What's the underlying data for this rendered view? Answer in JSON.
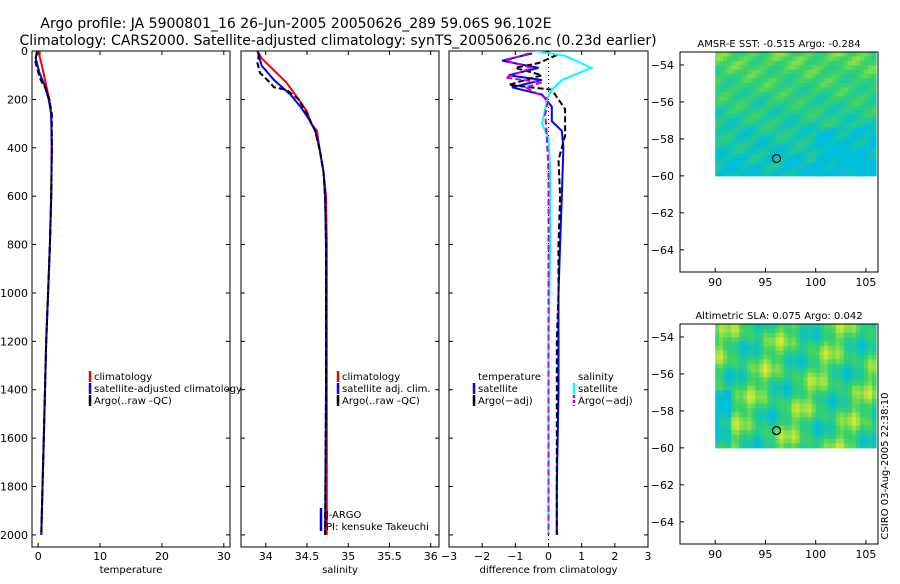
{
  "header": {
    "line1": "Argo profile: JA 5900801_16 26-Jun-2005 20050626_289 59.06S 96.102E",
    "line2": "Climatology: CARS2000. Satellite-adjusted climatology: synTS_20050626.nc (0.23d earlier)"
  },
  "stamp": "CSIRO 03-Aug-2005 22:38:10",
  "colors": {
    "red": "#ff0000",
    "blue": "#0000ff",
    "black": "#000000",
    "cyan": "#00ffff",
    "magenta": "#cc00cc"
  },
  "chart_data": [
    {
      "type": "line",
      "id": "temp",
      "xlabel": "temperature",
      "xlim": [
        -1,
        31
      ],
      "ylim": [
        2050,
        0
      ],
      "xticks": [
        0,
        10,
        20,
        30
      ],
      "yticks": [
        0,
        200,
        400,
        600,
        800,
        1000,
        1200,
        1400,
        1600,
        1800,
        2000
      ],
      "legend": [
        {
          "label": "climatology",
          "color": "red"
        },
        {
          "label": "satellite-adjusted climatology",
          "color": "blue"
        },
        {
          "label": "Argo(..raw -QC)",
          "color": "black"
        }
      ],
      "series": [
        {
          "name": "climatology",
          "color": "red",
          "dash": false,
          "points": [
            [
              0.3,
              0
            ],
            [
              0.2,
              20
            ],
            [
              0.6,
              60
            ],
            [
              1.2,
              130
            ],
            [
              1.8,
              200
            ],
            [
              2.1,
              260
            ],
            [
              2.2,
              400
            ],
            [
              2.1,
              600
            ],
            [
              1.9,
              800
            ],
            [
              1.6,
              1000
            ],
            [
              1.3,
              1200
            ],
            [
              1.1,
              1400
            ],
            [
              0.9,
              1600
            ],
            [
              0.7,
              1800
            ],
            [
              0.5,
              2000
            ]
          ]
        },
        {
          "name": "satellite-adjusted climatology",
          "color": "blue",
          "dash": false,
          "points": [
            [
              -0.2,
              0
            ],
            [
              -0.4,
              30
            ],
            [
              0.2,
              90
            ],
            [
              1.0,
              140
            ],
            [
              1.7,
              200
            ],
            [
              2.1,
              260
            ],
            [
              2.2,
              400
            ],
            [
              2.1,
              600
            ],
            [
              1.9,
              800
            ],
            [
              1.6,
              1000
            ],
            [
              1.3,
              1200
            ],
            [
              1.1,
              1400
            ],
            [
              0.9,
              1600
            ],
            [
              0.7,
              1800
            ],
            [
              0.5,
              2000
            ]
          ]
        },
        {
          "name": "Argo",
          "color": "black",
          "dash": true,
          "points": [
            [
              -0.2,
              5
            ],
            [
              -0.5,
              40
            ],
            [
              -0.1,
              80
            ],
            [
              0.4,
              120
            ],
            [
              1.1,
              150
            ],
            [
              1.8,
              200
            ],
            [
              2.2,
              260
            ],
            [
              2.2,
              400
            ],
            [
              2.1,
              600
            ],
            [
              1.9,
              800
            ],
            [
              1.6,
              1000
            ],
            [
              1.3,
              1200
            ],
            [
              1.1,
              1400
            ],
            [
              0.9,
              1600
            ],
            [
              0.7,
              1800
            ],
            [
              0.5,
              2000
            ]
          ]
        }
      ]
    },
    {
      "type": "line",
      "id": "sal",
      "xlabel": "salinity",
      "xlim": [
        33.7,
        36.1
      ],
      "ylim": [
        2050,
        0
      ],
      "xticks": [
        34,
        34.5,
        35,
        35.5,
        36
      ],
      "xticklabels": [
        "34",
        "34.5",
        "35",
        "35.5",
        "36"
      ],
      "legend": [
        {
          "label": "climatology",
          "color": "red"
        },
        {
          "label": "satellite adj. clim.",
          "color": "blue"
        },
        {
          "label": "Argo(..raw -QC)",
          "color": "black"
        }
      ],
      "note": [
        "J-ARGO",
        "PI: kensuke Takeuchi"
      ],
      "series": [
        {
          "name": "climatology",
          "color": "red",
          "dash": false,
          "points": [
            [
              33.9,
              0
            ],
            [
              33.95,
              30
            ],
            [
              34.1,
              80
            ],
            [
              34.25,
              130
            ],
            [
              34.4,
              200
            ],
            [
              34.5,
              250
            ],
            [
              34.55,
              300
            ],
            [
              34.62,
              330
            ],
            [
              34.65,
              400
            ],
            [
              34.7,
              500
            ],
            [
              34.73,
              600
            ],
            [
              34.74,
              800
            ],
            [
              34.74,
              1000
            ],
            [
              34.74,
              1400
            ],
            [
              34.74,
              2000
            ]
          ]
        },
        {
          "name": "satellite adj. clim.",
          "color": "blue",
          "dash": false,
          "points": [
            [
              33.9,
              0
            ],
            [
              33.95,
              60
            ],
            [
              34.1,
              120
            ],
            [
              34.3,
              180
            ],
            [
              34.42,
              230
            ],
            [
              34.52,
              280
            ],
            [
              34.6,
              330
            ],
            [
              34.65,
              400
            ],
            [
              34.7,
              500
            ],
            [
              34.72,
              600
            ],
            [
              34.73,
              800
            ],
            [
              34.73,
              1000
            ],
            [
              34.73,
              1400
            ],
            [
              34.72,
              2000
            ]
          ]
        },
        {
          "name": "Argo",
          "color": "black",
          "dash": true,
          "points": [
            [
              33.92,
              10
            ],
            [
              33.9,
              50
            ],
            [
              33.93,
              90
            ],
            [
              34.05,
              130
            ],
            [
              34.1,
              150
            ],
            [
              34.25,
              160
            ],
            [
              34.4,
              200
            ],
            [
              34.5,
              260
            ],
            [
              34.6,
              330
            ],
            [
              34.66,
              420
            ],
            [
              34.7,
              500
            ],
            [
              34.72,
              600
            ],
            [
              34.73,
              800
            ],
            [
              34.73,
              1000
            ],
            [
              34.73,
              1400
            ],
            [
              34.72,
              2000
            ]
          ]
        }
      ]
    },
    {
      "type": "line",
      "id": "diff",
      "xlabel": "difference from climatology",
      "xlim": [
        -3,
        3
      ],
      "ylim": [
        2050,
        0
      ],
      "xticks": [
        -3,
        -2,
        -1,
        0,
        1,
        2,
        3
      ],
      "legend": [
        {
          "label": "temperature",
          "color": "none"
        },
        {
          "label": "satellite",
          "color": "blue"
        },
        {
          "label": "Argo(−adj)",
          "color": "black"
        }
      ],
      "legend2": [
        {
          "label": "salinity",
          "color": "none"
        },
        {
          "label": "satellite",
          "color": "cyan"
        },
        {
          "label": "Argo(−adj)",
          "color": "magenta"
        }
      ],
      "series": [
        {
          "name": "temperature satellite",
          "color": "blue",
          "dash": false,
          "points": [
            [
              -0.5,
              10
            ],
            [
              -1.4,
              40
            ],
            [
              -0.3,
              70
            ],
            [
              -1.2,
              100
            ],
            [
              -0.2,
              120
            ],
            [
              -1.1,
              150
            ],
            [
              -0.2,
              180
            ],
            [
              0.1,
              230
            ],
            [
              0.1,
              290
            ],
            [
              0.4,
              330
            ],
            [
              0.45,
              400
            ],
            [
              0.4,
              600
            ],
            [
              0.35,
              800
            ],
            [
              0.3,
              1000
            ],
            [
              0.3,
              1200
            ],
            [
              0.3,
              1400
            ],
            [
              0.25,
              1800
            ],
            [
              0.25,
              2000
            ]
          ]
        },
        {
          "name": "temperature Argo",
          "color": "black",
          "dash": true,
          "points": [
            [
              -0.1,
              0
            ],
            [
              0.2,
              20
            ],
            [
              -0.3,
              50
            ],
            [
              -1.0,
              70
            ],
            [
              -0.2,
              100
            ],
            [
              -1.2,
              140
            ],
            [
              0.1,
              160
            ],
            [
              0.5,
              240
            ],
            [
              0.5,
              350
            ],
            [
              0.3,
              450
            ],
            [
              0.35,
              600
            ],
            [
              0.3,
              800
            ],
            [
              0.3,
              1000
            ],
            [
              0.25,
              1200
            ],
            [
              0.25,
              1600
            ],
            [
              0.25,
              2000
            ]
          ]
        },
        {
          "name": "salinity satellite",
          "color": "cyan",
          "dash": false,
          "points": [
            [
              -0.4,
              0
            ],
            [
              0.5,
              20
            ],
            [
              1.3,
              70
            ],
            [
              0.4,
              120
            ],
            [
              0.1,
              160
            ],
            [
              -0.05,
              200
            ],
            [
              -0.1,
              240
            ],
            [
              -0.2,
              300
            ],
            [
              0,
              360
            ],
            [
              0.05,
              500
            ],
            [
              0.05,
              800
            ],
            [
              0,
              1200
            ],
            [
              0,
              1600
            ],
            [
              0,
              2000
            ]
          ]
        },
        {
          "name": "salinity Argo",
          "color": "magenta",
          "dash": true,
          "points": [
            [
              -0.6,
              10
            ],
            [
              -1.3,
              40
            ],
            [
              -0.5,
              70
            ],
            [
              -1.3,
              110
            ],
            [
              -0.2,
              130
            ],
            [
              -0.7,
              150
            ],
            [
              0.0,
              200
            ],
            [
              -0.1,
              260
            ],
            [
              -0.05,
              350
            ],
            [
              0,
              500
            ],
            [
              0,
              1000
            ],
            [
              0,
              2000
            ]
          ]
        }
      ]
    },
    {
      "type": "heatmap",
      "id": "sst",
      "title": "AMSR-E SST: -0.515 Argo: -0.284",
      "xlim": [
        86.5,
        106.2
      ],
      "ylim": [
        -65.2,
        -53.3
      ],
      "xticks": [
        90,
        95,
        100,
        105
      ],
      "yticks": [
        -54,
        -56,
        -58,
        -60,
        -62,
        -64
      ],
      "extent": {
        "lon": [
          90,
          106
        ],
        "lat": [
          -60,
          -53.3
        ]
      },
      "marker": {
        "lon": 96.1,
        "lat": -59.06
      }
    },
    {
      "type": "heatmap",
      "id": "sla",
      "title": "Altimetric SLA: 0.075 Argo: 0.042",
      "xlim": [
        86.5,
        106.2
      ],
      "ylim": [
        -65.2,
        -53.3
      ],
      "xticks": [
        90,
        95,
        100,
        105
      ],
      "yticks": [
        -54,
        -56,
        -58,
        -60,
        -62,
        -64
      ],
      "extent": {
        "lon": [
          90,
          106
        ],
        "lat": [
          -60,
          -53.3
        ]
      },
      "marker": {
        "lon": 96.1,
        "lat": -59.06
      }
    }
  ]
}
